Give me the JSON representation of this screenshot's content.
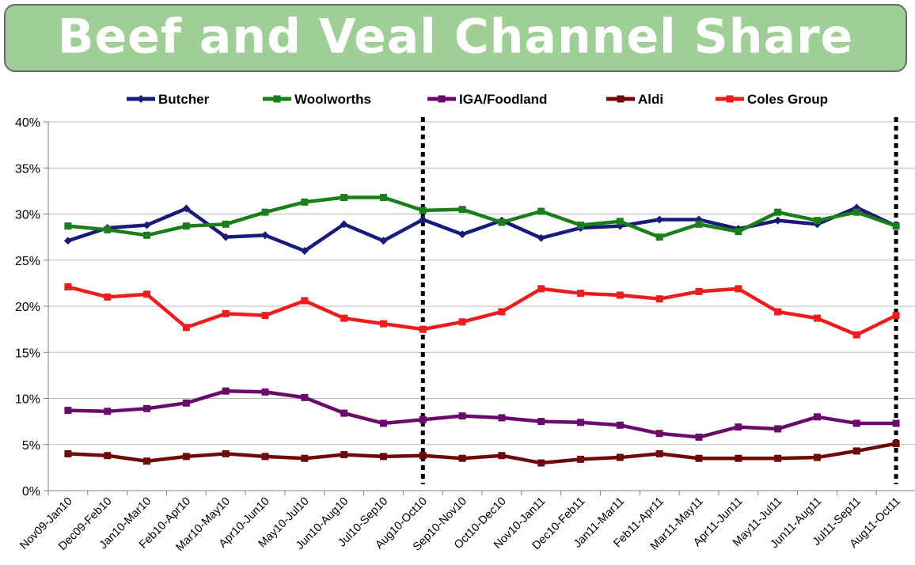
{
  "chart_data": {
    "type": "line",
    "title": "Beef and Veal Channel Share",
    "xlabel": "",
    "ylabel": "",
    "ylim": [
      0,
      40
    ],
    "y_ticks": [
      "0%",
      "5%",
      "10%",
      "15%",
      "20%",
      "25%",
      "30%",
      "35%",
      "40%"
    ],
    "grid": true,
    "legend_position": "top",
    "categories": [
      "Nov09-Jan10",
      "Dec09-Feb10",
      "Jan10-Mar10",
      "Feb10-Apr10",
      "Mar10-May10",
      "Apr10-Jun10",
      "May10-Jul10",
      "Jun10-Aug10",
      "Jul10-Sep10",
      "Aug10-Oct10",
      "Sep10-Nov10",
      "Oct10-Dec10",
      "Nov10-Jan11",
      "Dec10-Feb11",
      "Jan11-Mar11",
      "Feb11-Apr11",
      "Mar11-May11",
      "Apr11-Jun11",
      "May11-Jul11",
      "Jun11-Aug11",
      "Jul11-Sep11",
      "Aug11-Oct11"
    ],
    "vertical_markers": [
      "Aug10-Oct10",
      "Aug11-Oct11"
    ],
    "series": [
      {
        "name": "Butcher",
        "color": "#1a1a7a",
        "marker": "diamond",
        "values": [
          27.1,
          28.5,
          28.8,
          30.6,
          27.5,
          27.7,
          26.0,
          28.9,
          27.1,
          29.4,
          27.8,
          29.3,
          27.4,
          28.5,
          28.7,
          29.4,
          29.4,
          28.4,
          29.3,
          28.9,
          30.7,
          28.7
        ]
      },
      {
        "name": "Woolworths",
        "color": "#1a7f1a",
        "marker": "square",
        "values": [
          28.7,
          28.3,
          27.7,
          28.7,
          28.9,
          30.2,
          31.3,
          31.8,
          31.8,
          30.4,
          30.5,
          29.1,
          30.3,
          28.8,
          29.2,
          27.5,
          28.9,
          28.1,
          30.2,
          29.3,
          30.2,
          28.7
        ]
      },
      {
        "name": "IGA/Foodland",
        "color": "#6a0a6a",
        "marker": "square",
        "values": [
          8.7,
          8.6,
          8.9,
          9.5,
          10.8,
          10.7,
          10.1,
          8.4,
          7.3,
          7.7,
          8.1,
          7.9,
          7.5,
          7.4,
          7.1,
          6.2,
          5.8,
          6.9,
          6.7,
          8.0,
          7.3,
          7.3
        ]
      },
      {
        "name": "Aldi",
        "color": "#6e0a0a",
        "marker": "square",
        "values": [
          4.0,
          3.8,
          3.2,
          3.7,
          4.0,
          3.7,
          3.5,
          3.9,
          3.7,
          3.8,
          3.5,
          3.8,
          3.0,
          3.4,
          3.6,
          4.0,
          3.5,
          3.5,
          3.5,
          3.6,
          4.3,
          5.1
        ]
      },
      {
        "name": "Coles Group",
        "color": "#ee1c1c",
        "marker": "square",
        "values": [
          22.1,
          21.0,
          21.3,
          17.7,
          19.2,
          19.0,
          20.6,
          18.7,
          18.1,
          17.5,
          18.3,
          19.4,
          21.9,
          21.4,
          21.2,
          20.8,
          21.6,
          21.9,
          19.4,
          18.7,
          16.9,
          19.0
        ]
      }
    ]
  }
}
